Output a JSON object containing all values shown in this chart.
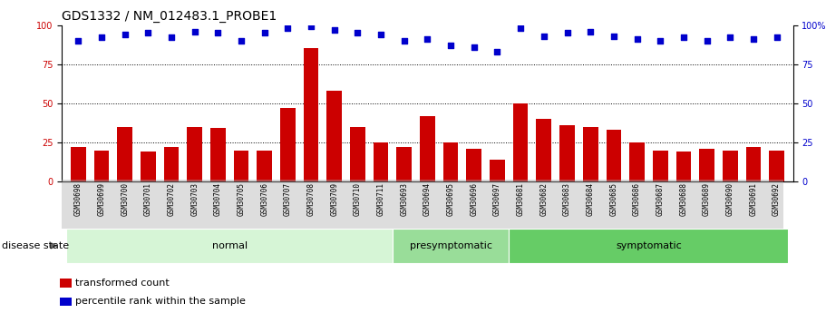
{
  "title": "GDS1332 / NM_012483.1_PROBE1",
  "samples": [
    "GSM30698",
    "GSM30699",
    "GSM30700",
    "GSM30701",
    "GSM30702",
    "GSM30703",
    "GSM30704",
    "GSM30705",
    "GSM30706",
    "GSM30707",
    "GSM30708",
    "GSM30709",
    "GSM30710",
    "GSM30711",
    "GSM30693",
    "GSM30694",
    "GSM30695",
    "GSM30696",
    "GSM30697",
    "GSM30681",
    "GSM30682",
    "GSM30683",
    "GSM30684",
    "GSM30685",
    "GSM30686",
    "GSM30687",
    "GSM30688",
    "GSM30689",
    "GSM30690",
    "GSM30691",
    "GSM30692"
  ],
  "bar_values": [
    22,
    20,
    35,
    19,
    22,
    35,
    34,
    20,
    20,
    47,
    85,
    58,
    35,
    25,
    22,
    42,
    25,
    21,
    14,
    50,
    40,
    36,
    35,
    33,
    25,
    20,
    19,
    21,
    20,
    22,
    20
  ],
  "dot_values": [
    90,
    92,
    94,
    95,
    92,
    96,
    95,
    90,
    95,
    98,
    99,
    97,
    95,
    94,
    90,
    91,
    87,
    86,
    83,
    98,
    93,
    95,
    96,
    93,
    91,
    90,
    92,
    90,
    92,
    91,
    92
  ],
  "groups": [
    {
      "label": "normal",
      "start": 0,
      "end": 14,
      "color": "#d6f5d6"
    },
    {
      "label": "presymptomatic",
      "start": 14,
      "end": 19,
      "color": "#99dd99"
    },
    {
      "label": "symptomatic",
      "start": 19,
      "end": 31,
      "color": "#66cc66"
    }
  ],
  "bar_color": "#cc0000",
  "dot_color": "#0000cc",
  "grid_lines": [
    25,
    50,
    75
  ],
  "ylim_left": [
    0,
    100
  ],
  "ylim_right": [
    0,
    100
  ],
  "yticks_left": [
    0,
    25,
    50,
    75,
    100
  ],
  "yticks_right": [
    0,
    25,
    50,
    75,
    100
  ],
  "right_tick_labels": [
    "0",
    "25",
    "50",
    "75",
    "100%"
  ],
  "legend_items": [
    {
      "label": "transformed count",
      "color": "#cc0000",
      "marker": "s"
    },
    {
      "label": "percentile rank within the sample",
      "color": "#0000cc",
      "marker": "s"
    }
  ],
  "disease_state_label": "disease state",
  "title_fontsize": 10,
  "tick_fontsize": 7,
  "label_fontsize": 8,
  "xtick_fontsize": 5.5,
  "group_label_fontsize": 8,
  "xticklabel_color": "#333333",
  "xtick_bg_color": "#aaaaaa"
}
